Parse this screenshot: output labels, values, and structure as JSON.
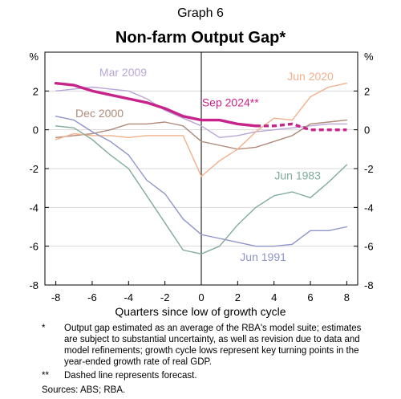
{
  "graph_label": "Graph 6",
  "chart_data": {
    "type": "line",
    "title": "Non-farm Output Gap*",
    "xlabel": "Quarters since low of growth cycle",
    "ylabel_left": "%",
    "ylabel_right": "%",
    "xlim": [
      -8.6,
      8.6
    ],
    "ylim": [
      -8,
      4
    ],
    "x_ticks": [
      "-8",
      "-6",
      "-4",
      "-2",
      "0",
      "2",
      "4",
      "6",
      "8"
    ],
    "y_ticks": [
      "2",
      "0",
      "-2",
      "-4",
      "-6",
      "-8"
    ],
    "grid": "horizontal",
    "zero_line": true,
    "series": [
      {
        "name": "Mar 2009",
        "color": "#b9a6d6",
        "width": 1.4,
        "x": [
          -8,
          -7,
          -6,
          -5,
          -4,
          -3,
          -2,
          -1,
          0,
          1,
          2,
          3,
          4,
          5,
          6,
          7,
          8
        ],
        "y": [
          2.0,
          2.1,
          2.2,
          2.1,
          2.0,
          1.6,
          1.0,
          0.6,
          0.2,
          -0.4,
          -0.3,
          -0.1,
          0.0,
          0.1,
          0.2,
          0.3,
          0.3
        ]
      },
      {
        "name": "Dec 2000",
        "color": "#b08a7a",
        "width": 1.4,
        "x": [
          -8,
          -7,
          -6,
          -5,
          -4,
          -3,
          -2,
          -1,
          0,
          1,
          2,
          3,
          4,
          5,
          6,
          7,
          8
        ],
        "y": [
          -0.4,
          -0.3,
          -0.2,
          0.0,
          0.3,
          0.3,
          0.4,
          0.2,
          -0.6,
          -0.8,
          -1.0,
          -0.9,
          -0.6,
          -0.3,
          0.3,
          0.4,
          0.5
        ]
      },
      {
        "name": "Jun 2020",
        "color": "#f2b08a",
        "width": 1.4,
        "x": [
          -8,
          -7,
          -6,
          -5,
          -4,
          -3,
          -2,
          -1,
          0,
          1,
          2,
          3,
          4,
          5,
          6,
          7,
          8
        ],
        "y": [
          -0.5,
          -0.2,
          -0.3,
          -0.3,
          -0.4,
          -0.3,
          -0.3,
          -0.3,
          -2.4,
          -1.6,
          -1.0,
          -0.1,
          0.6,
          0.5,
          1.7,
          2.2,
          2.4
        ]
      },
      {
        "name": "Jun 1983",
        "color": "#7fab9c",
        "width": 1.4,
        "x": [
          -8,
          -7,
          -6,
          -5,
          -4,
          -3,
          -2,
          -1,
          0,
          1,
          2,
          3,
          4,
          5,
          6,
          7,
          8
        ],
        "y": [
          0.2,
          0.1,
          -0.5,
          -1.3,
          -2.0,
          -3.4,
          -4.8,
          -6.2,
          -6.4,
          -6.0,
          -4.9,
          -4.0,
          -3.4,
          -3.2,
          -3.5,
          -2.7,
          -1.8
        ]
      },
      {
        "name": "Jun 1991",
        "color": "#8e95c8",
        "width": 1.4,
        "x": [
          -8,
          -7,
          -6,
          -5,
          -4,
          -3,
          -2,
          -1,
          0,
          1,
          2,
          3,
          4,
          5,
          6,
          7,
          8
        ],
        "y": [
          0.7,
          0.5,
          -0.1,
          -0.6,
          -1.3,
          -2.6,
          -3.3,
          -4.6,
          -5.4,
          -5.6,
          -5.8,
          -6.0,
          -6.0,
          -5.9,
          -5.2,
          -5.2,
          -5.0
        ]
      },
      {
        "name": "Sep 2024**",
        "color": "#c8238a",
        "width": 3.4,
        "x": [
          -8,
          -7,
          -6,
          -5,
          -4,
          -3,
          -2,
          -1,
          0,
          1,
          2,
          3
        ],
        "y": [
          2.4,
          2.3,
          2.0,
          1.8,
          1.6,
          1.4,
          1.1,
          0.7,
          0.5,
          0.5,
          0.3,
          0.2
        ]
      },
      {
        "name": "Sep 2024 forecast",
        "color": "#c8238a",
        "width": 3.4,
        "dashed": true,
        "x": [
          3,
          4,
          5,
          6,
          7,
          8
        ],
        "y": [
          0.2,
          0.2,
          0.3,
          0.0,
          0.0,
          0.0
        ]
      }
    ],
    "annotations": [
      {
        "text": "Mar 2009",
        "color": "#b9a6d6"
      },
      {
        "text": "Dec 2000",
        "color": "#b08a7a"
      },
      {
        "text": "Jun 2020",
        "color": "#f2b08a"
      },
      {
        "text": "Sep 2024**",
        "color": "#c8238a"
      },
      {
        "text": "Jun 1983",
        "color": "#7fab9c"
      },
      {
        "text": "Jun 1991",
        "color": "#8e95c8"
      }
    ]
  },
  "notes": [
    {
      "mark": "*",
      "text": "Output gap estimated as an average of the RBA's model suite; estimates are subject to substantial uncertainty, as well as revision due to data and model refinements; growth cycle lows represent key turning points in the year-ended growth rate of real GDP."
    },
    {
      "mark": "**",
      "text": "Dashed line represents forecast."
    }
  ],
  "sources": "Sources: ABS; RBA."
}
